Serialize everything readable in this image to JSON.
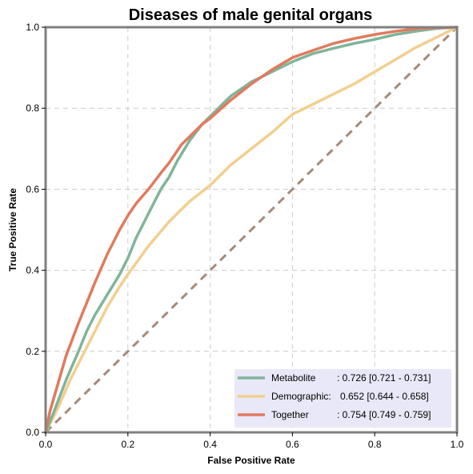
{
  "chart_data": {
    "type": "line",
    "title": "Diseases of male genital organs",
    "xlabel": "False Positive Rate",
    "ylabel": "True Positive Rate",
    "xlim": [
      0,
      1
    ],
    "ylim": [
      0,
      1
    ],
    "xticks": [
      "0.0",
      "0.2",
      "0.4",
      "0.6",
      "0.8",
      "1.0"
    ],
    "yticks": [
      "0.0",
      "0.2",
      "0.4",
      "0.6",
      "0.8",
      "1.0"
    ],
    "grid": true,
    "legend_position": "bottom-right",
    "series": [
      {
        "name": "Metabolite",
        "label": ": 0.726 [0.721 - 0.731]",
        "color": "#7fb59a",
        "points": [
          [
            0,
            0
          ],
          [
            0.02,
            0.05
          ],
          [
            0.05,
            0.13
          ],
          [
            0.08,
            0.2
          ],
          [
            0.1,
            0.25
          ],
          [
            0.12,
            0.29
          ],
          [
            0.15,
            0.34
          ],
          [
            0.18,
            0.39
          ],
          [
            0.2,
            0.43
          ],
          [
            0.22,
            0.48
          ],
          [
            0.25,
            0.54
          ],
          [
            0.28,
            0.6
          ],
          [
            0.3,
            0.63
          ],
          [
            0.32,
            0.67
          ],
          [
            0.35,
            0.72
          ],
          [
            0.38,
            0.76
          ],
          [
            0.4,
            0.78
          ],
          [
            0.45,
            0.83
          ],
          [
            0.5,
            0.865
          ],
          [
            0.55,
            0.89
          ],
          [
            0.6,
            0.915
          ],
          [
            0.65,
            0.935
          ],
          [
            0.7,
            0.948
          ],
          [
            0.75,
            0.96
          ],
          [
            0.8,
            0.97
          ],
          [
            0.85,
            0.982
          ],
          [
            0.9,
            0.99
          ],
          [
            0.95,
            0.997
          ],
          [
            1,
            1
          ]
        ]
      },
      {
        "name": "Demographic:",
        "label": "0.652 [0.644 - 0.658]",
        "color": "#f2cf8e",
        "points": [
          [
            0,
            0
          ],
          [
            0.03,
            0.06
          ],
          [
            0.06,
            0.13
          ],
          [
            0.09,
            0.19
          ],
          [
            0.12,
            0.25
          ],
          [
            0.15,
            0.31
          ],
          [
            0.18,
            0.36
          ],
          [
            0.2,
            0.39
          ],
          [
            0.25,
            0.46
          ],
          [
            0.3,
            0.52
          ],
          [
            0.35,
            0.57
          ],
          [
            0.4,
            0.61
          ],
          [
            0.45,
            0.66
          ],
          [
            0.5,
            0.7
          ],
          [
            0.55,
            0.74
          ],
          [
            0.6,
            0.785
          ],
          [
            0.65,
            0.81
          ],
          [
            0.7,
            0.835
          ],
          [
            0.75,
            0.86
          ],
          [
            0.8,
            0.89
          ],
          [
            0.85,
            0.92
          ],
          [
            0.9,
            0.95
          ],
          [
            0.95,
            0.975
          ],
          [
            1,
            1
          ]
        ]
      },
      {
        "name": "Together",
        "label": ": 0.754 [0.749 - 0.759]",
        "color": "#e07b5e",
        "points": [
          [
            0,
            0
          ],
          [
            0.01,
            0.05
          ],
          [
            0.03,
            0.12
          ],
          [
            0.05,
            0.19
          ],
          [
            0.08,
            0.27
          ],
          [
            0.1,
            0.32
          ],
          [
            0.12,
            0.37
          ],
          [
            0.15,
            0.44
          ],
          [
            0.18,
            0.5
          ],
          [
            0.2,
            0.535
          ],
          [
            0.22,
            0.565
          ],
          [
            0.25,
            0.6
          ],
          [
            0.28,
            0.64
          ],
          [
            0.3,
            0.665
          ],
          [
            0.33,
            0.71
          ],
          [
            0.35,
            0.73
          ],
          [
            0.38,
            0.76
          ],
          [
            0.4,
            0.775
          ],
          [
            0.45,
            0.82
          ],
          [
            0.5,
            0.86
          ],
          [
            0.55,
            0.895
          ],
          [
            0.6,
            0.925
          ],
          [
            0.65,
            0.943
          ],
          [
            0.7,
            0.96
          ],
          [
            0.75,
            0.972
          ],
          [
            0.8,
            0.982
          ],
          [
            0.85,
            0.99
          ],
          [
            0.9,
            0.996
          ],
          [
            0.95,
            0.999
          ],
          [
            1,
            1
          ]
        ]
      }
    ],
    "reference_line": {
      "color": "#a58a7a",
      "points": [
        [
          0,
          0
        ],
        [
          1,
          1
        ]
      ]
    },
    "legend_bg_color": "#e8e8f8",
    "grid_color": "#cccccc",
    "frame_color": "#808080"
  }
}
